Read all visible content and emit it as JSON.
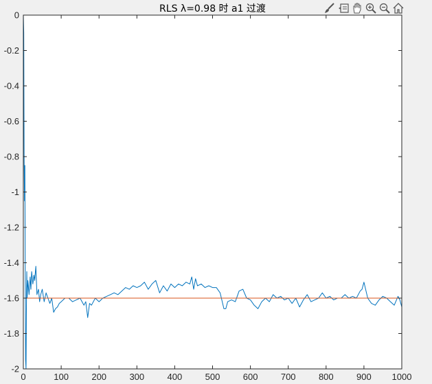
{
  "window": {
    "toolbar": [
      {
        "name": "brush-icon",
        "label": "brush"
      },
      {
        "name": "datatip-icon",
        "label": "data tips"
      },
      {
        "name": "pan-hand-icon",
        "label": "pan"
      },
      {
        "name": "zoom-in-icon",
        "label": "zoom in"
      },
      {
        "name": "zoom-out-icon",
        "label": "zoom out"
      },
      {
        "name": "home-icon",
        "label": "restore view"
      }
    ]
  },
  "chart_data": {
    "type": "line",
    "title": "RLS λ=0.98 时 a1 过渡",
    "xlabel": "",
    "ylabel": "",
    "xlim": [
      0,
      1000
    ],
    "ylim": [
      -2,
      0
    ],
    "xticks": [
      "0",
      "100",
      "200",
      "300",
      "400",
      "500",
      "600",
      "700",
      "800",
      "900",
      "1000"
    ],
    "yticks": [
      "0",
      "-0.2",
      "-0.4",
      "-0.6",
      "-0.8",
      "-1",
      "-1.2",
      "-1.4",
      "-1.6",
      "-1.8",
      "-2"
    ],
    "grid": false,
    "colors": {
      "estimate": "#0072bd",
      "true_value": "#d95319",
      "axes": "#262626"
    },
    "series": [
      {
        "role": "estimate",
        "x": [
          0,
          1,
          2,
          3,
          4,
          5,
          6,
          7,
          8,
          9,
          10,
          12,
          15,
          18,
          20,
          22,
          25,
          28,
          30,
          33,
          36,
          40,
          43,
          46,
          50,
          55,
          60,
          65,
          70,
          75,
          80,
          85,
          90,
          95,
          100,
          110,
          120,
          130,
          140,
          150,
          160,
          165,
          170,
          175,
          180,
          190,
          200,
          210,
          220,
          230,
          240,
          250,
          260,
          270,
          280,
          290,
          300,
          310,
          320,
          330,
          340,
          350,
          360,
          370,
          380,
          390,
          400,
          410,
          420,
          430,
          440,
          445,
          450,
          455,
          460,
          470,
          480,
          490,
          500,
          510,
          520,
          530,
          535,
          540,
          550,
          560,
          570,
          580,
          590,
          600,
          610,
          620,
          630,
          640,
          650,
          660,
          670,
          680,
          690,
          700,
          710,
          720,
          730,
          740,
          750,
          760,
          770,
          780,
          790,
          800,
          810,
          820,
          830,
          840,
          850,
          860,
          870,
          880,
          890,
          895,
          900,
          910,
          920,
          930,
          940,
          950,
          960,
          970,
          980,
          990,
          995,
          1000
        ],
        "y": [
          0,
          -0.1,
          -0.8,
          -1.05,
          -0.85,
          -1.5,
          -1.95,
          -2,
          -1.7,
          -1.45,
          -1.6,
          -1.5,
          -1.58,
          -1.48,
          -1.55,
          -1.45,
          -1.52,
          -1.47,
          -1.5,
          -1.42,
          -1.58,
          -1.55,
          -1.62,
          -1.58,
          -1.55,
          -1.62,
          -1.57,
          -1.6,
          -1.63,
          -1.6,
          -1.68,
          -1.66,
          -1.65,
          -1.63,
          -1.62,
          -1.6,
          -1.6,
          -1.62,
          -1.61,
          -1.6,
          -1.64,
          -1.62,
          -1.71,
          -1.63,
          -1.64,
          -1.6,
          -1.62,
          -1.6,
          -1.59,
          -1.58,
          -1.57,
          -1.58,
          -1.56,
          -1.54,
          -1.55,
          -1.53,
          -1.54,
          -1.53,
          -1.51,
          -1.55,
          -1.52,
          -1.5,
          -1.57,
          -1.53,
          -1.56,
          -1.52,
          -1.54,
          -1.52,
          -1.53,
          -1.51,
          -1.52,
          -1.48,
          -1.55,
          -1.49,
          -1.53,
          -1.52,
          -1.54,
          -1.53,
          -1.54,
          -1.54,
          -1.57,
          -1.66,
          -1.66,
          -1.62,
          -1.61,
          -1.62,
          -1.56,
          -1.55,
          -1.6,
          -1.61,
          -1.64,
          -1.66,
          -1.62,
          -1.6,
          -1.62,
          -1.58,
          -1.6,
          -1.59,
          -1.61,
          -1.6,
          -1.63,
          -1.6,
          -1.65,
          -1.61,
          -1.58,
          -1.62,
          -1.61,
          -1.6,
          -1.57,
          -1.6,
          -1.59,
          -1.61,
          -1.6,
          -1.6,
          -1.58,
          -1.6,
          -1.59,
          -1.6,
          -1.56,
          -1.55,
          -1.51,
          -1.6,
          -1.63,
          -1.64,
          -1.61,
          -1.59,
          -1.6,
          -1.62,
          -1.64,
          -1.59,
          -1.61,
          -1.65
        ]
      },
      {
        "role": "true_value",
        "x": [
          0,
          1000
        ],
        "y": [
          -1.6,
          -1.6
        ]
      }
    ]
  }
}
